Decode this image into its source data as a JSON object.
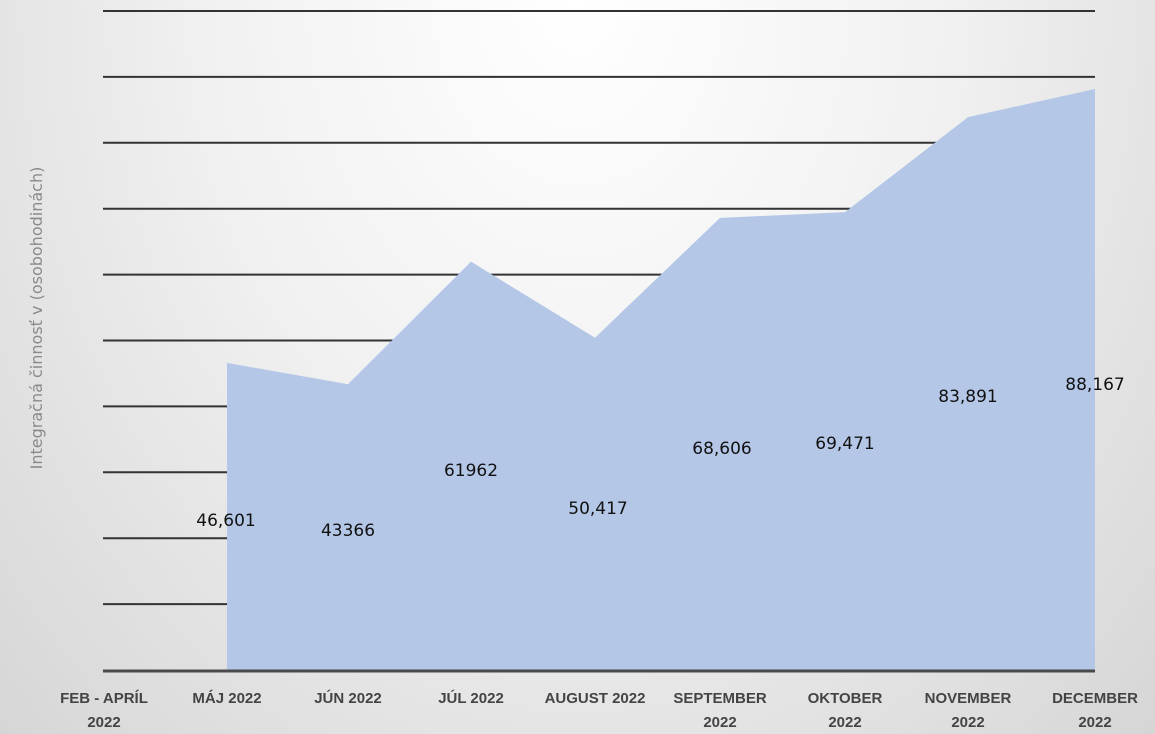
{
  "chart_data": {
    "type": "area",
    "categories": [
      "FEB - APRÍL 2022",
      "MÁJ 2022",
      "JÚN 2022",
      "JÚL 2022",
      "AUGUST 2022",
      "SEPTEMBER 2022",
      "OKTOBER 2022",
      "NOVEMBER 2022",
      "DECEMBER 2022"
    ],
    "x_tick_lines": [
      [
        "FEB - APRÍL",
        "2022"
      ],
      [
        "MÁJ 2022"
      ],
      [
        "JÚN 2022"
      ],
      [
        "JÚL 2022"
      ],
      [
        "AUGUST 2022"
      ],
      [
        "SEPTEMBER",
        "2022"
      ],
      [
        "OKTOBER",
        "2022"
      ],
      [
        "NOVEMBER",
        "2022"
      ],
      [
        "DECEMBER",
        "2022"
      ]
    ],
    "values": [
      null,
      46601,
      43366,
      61962,
      50417,
      68606,
      69471,
      83891,
      88167
    ],
    "data_labels": [
      "",
      "46,601",
      "43366",
      "61962",
      "50,417",
      "68,606",
      "69,471",
      "83,891",
      "88,167"
    ],
    "title": "",
    "xlabel": "",
    "ylabel": "Integračná činnosť v (osobohodinách)",
    "ylim": [
      0,
      100000
    ],
    "grid": true,
    "area_color": "#b4c7e7",
    "grid_color": "#333333"
  }
}
